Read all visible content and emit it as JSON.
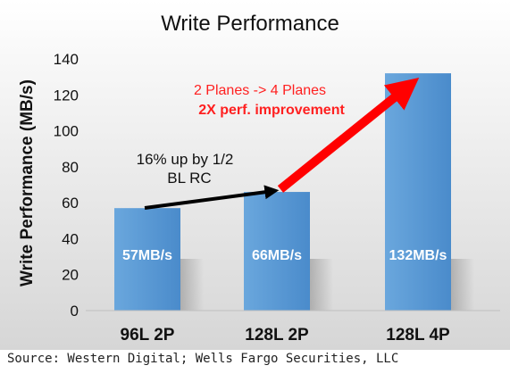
{
  "chart_data": {
    "type": "bar",
    "title": "Write Performance",
    "ylabel": "Write Performance (MB/s)",
    "xlabel": "",
    "categories": [
      "96L 2P",
      "128L 2P",
      "128L 4P"
    ],
    "values": [
      57,
      66,
      132
    ],
    "data_labels": [
      "57MB/s",
      "66MB/s",
      "132MB/s"
    ],
    "ylim": [
      0,
      140
    ],
    "yticks": [
      0,
      20,
      40,
      60,
      80,
      100,
      120,
      140
    ],
    "grid": false,
    "legend": "none",
    "bar_color": "#5b9bd5",
    "annotations": {
      "black_note_line1": "16% up by 1/2",
      "black_note_line2": "BL RC",
      "red_note_line1": "2 Planes -> 4 Planes",
      "red_note_line2": "2X perf. improvement"
    },
    "colors": {
      "red_arrow": "#ff0000",
      "black_arrow": "#000000",
      "red_text": "#ff2020"
    }
  },
  "source": "Source: Western Digital; Wells Fargo Securities, LLC"
}
